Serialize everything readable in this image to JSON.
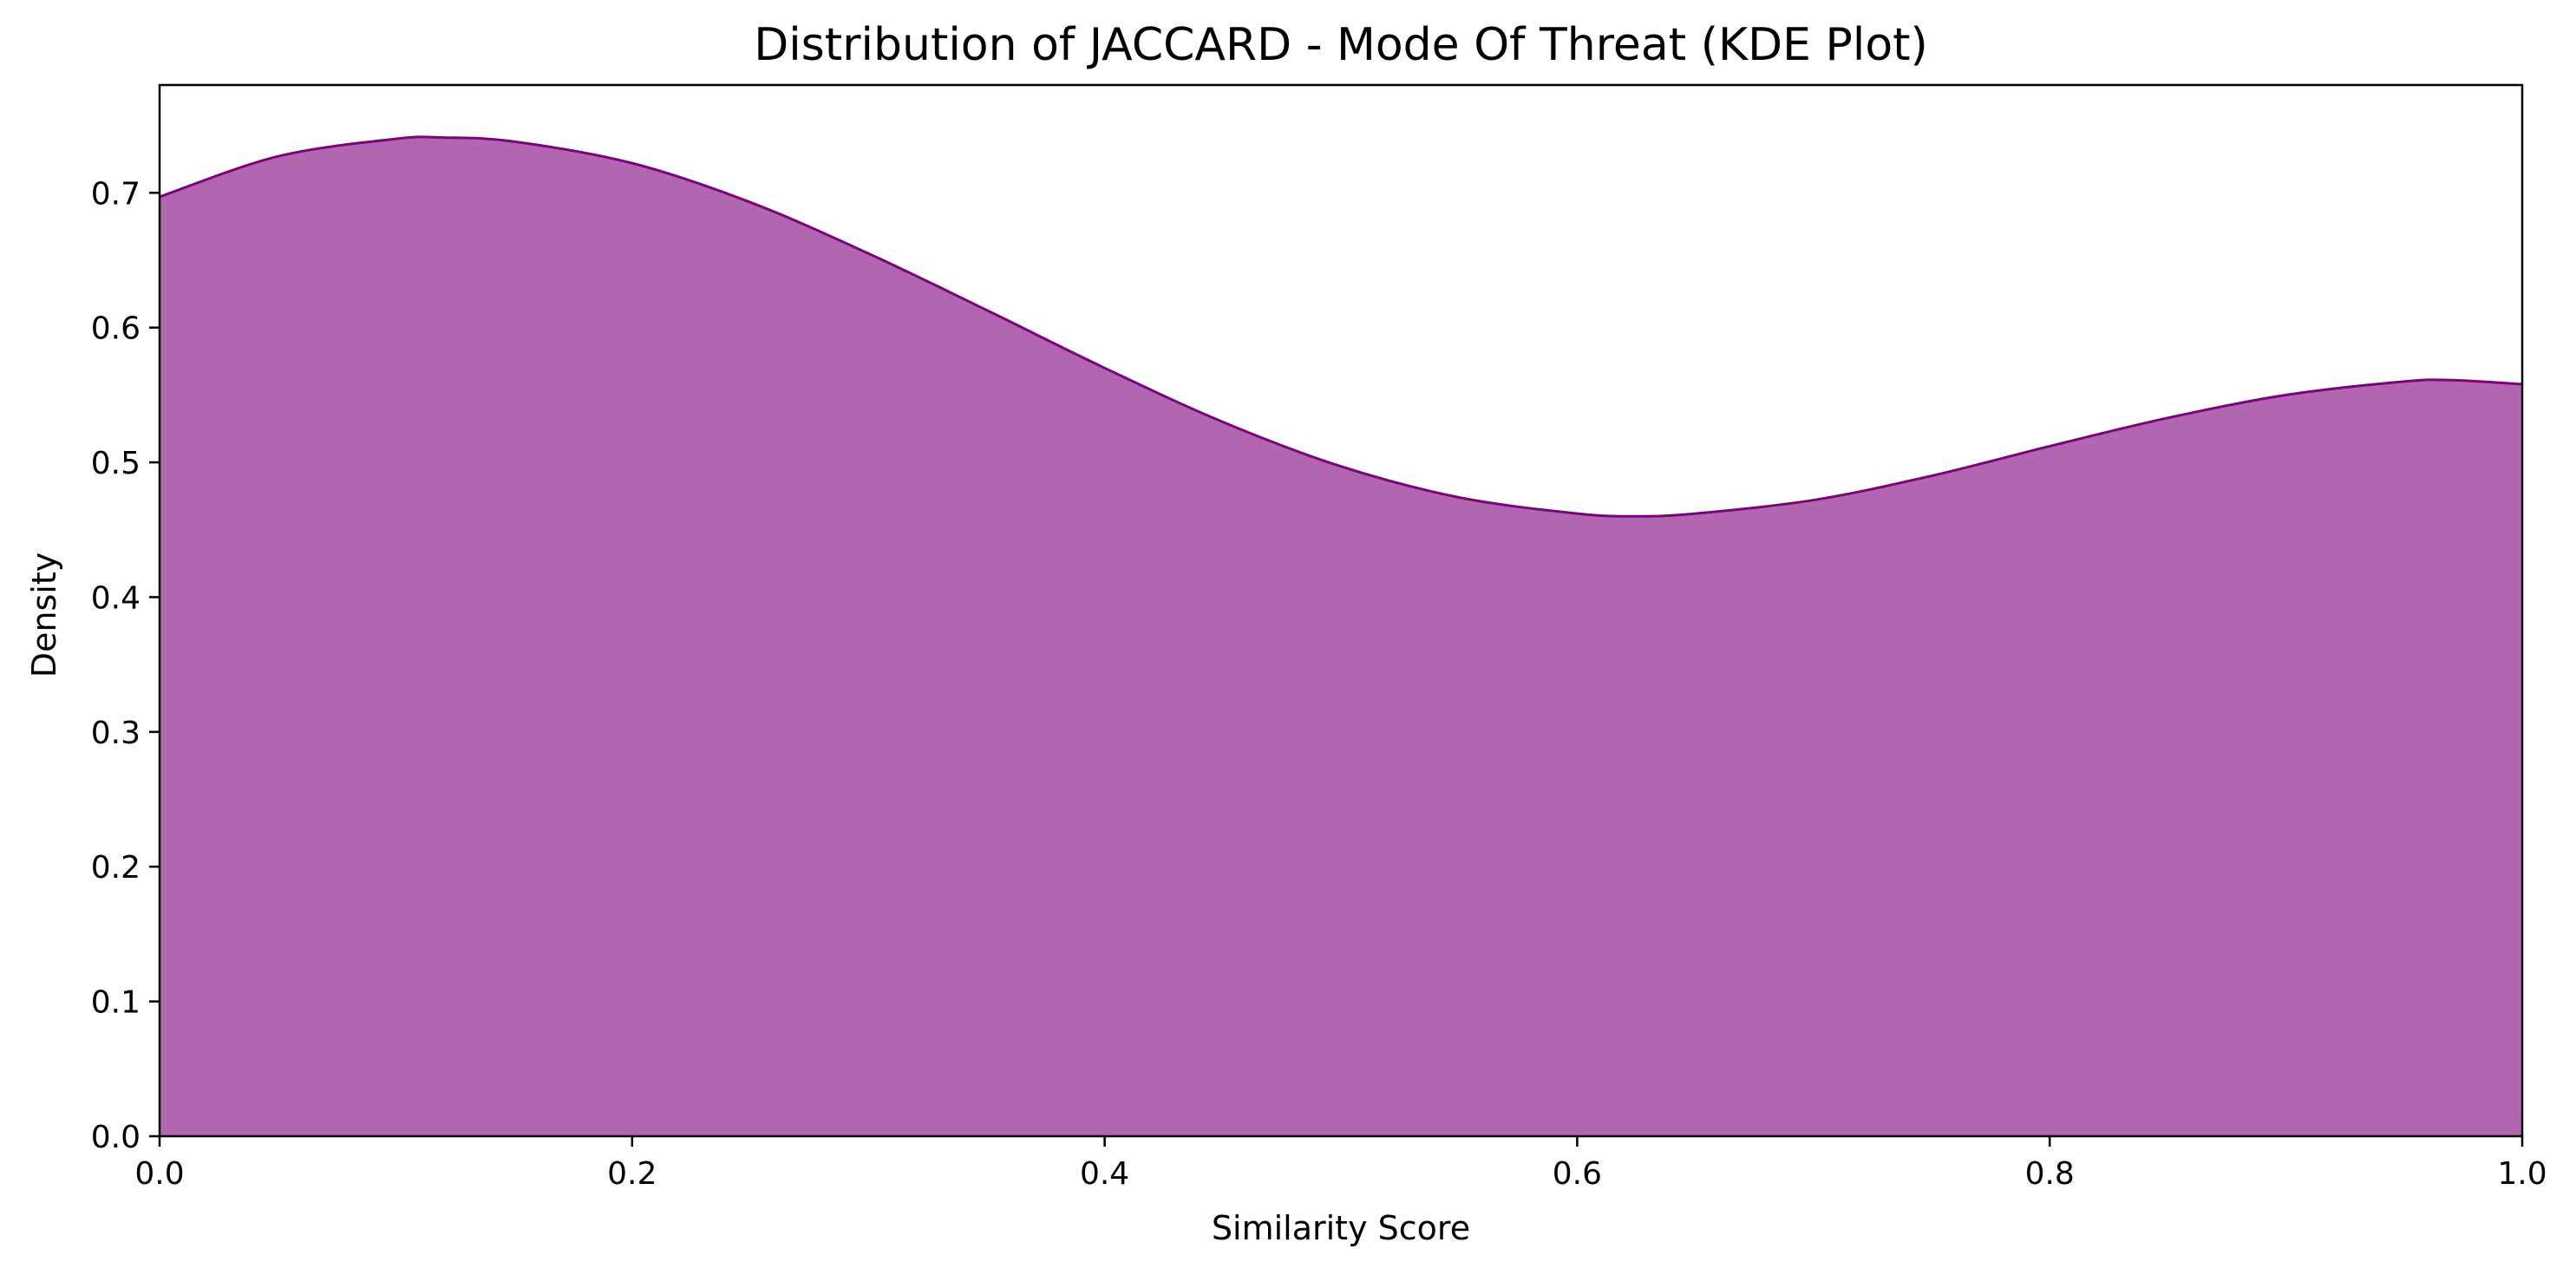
{
  "chart_data": {
    "type": "area",
    "title": "Distribution of JACCARD - Mode Of Threat (KDE Plot)",
    "xlabel": "Similarity Score",
    "ylabel": "Density",
    "xlim": [
      0.0,
      1.0
    ],
    "ylim": [
      0.0,
      0.78
    ],
    "xticks": [
      "0.0",
      "0.2",
      "0.4",
      "0.6",
      "0.8",
      "1.0"
    ],
    "yticks": [
      "0.0",
      "0.1",
      "0.2",
      "0.3",
      "0.4",
      "0.5",
      "0.6",
      "0.7"
    ],
    "grid": false,
    "legend": "none",
    "fill_color": "#b067b0",
    "line_color": "#800080",
    "series": [
      {
        "x": [
          0.0,
          0.05,
          0.1,
          0.12,
          0.15,
          0.2,
          0.25,
          0.3,
          0.35,
          0.4,
          0.45,
          0.5,
          0.55,
          0.6,
          0.625,
          0.65,
          0.7,
          0.75,
          0.8,
          0.85,
          0.9,
          0.95,
          0.97,
          1.0
        ],
        "y": [
          0.697,
          0.727,
          0.74,
          0.741,
          0.738,
          0.722,
          0.693,
          0.655,
          0.613,
          0.57,
          0.53,
          0.497,
          0.474,
          0.462,
          0.46,
          0.462,
          0.472,
          0.49,
          0.512,
          0.533,
          0.55,
          0.56,
          0.561,
          0.558
        ]
      }
    ]
  }
}
